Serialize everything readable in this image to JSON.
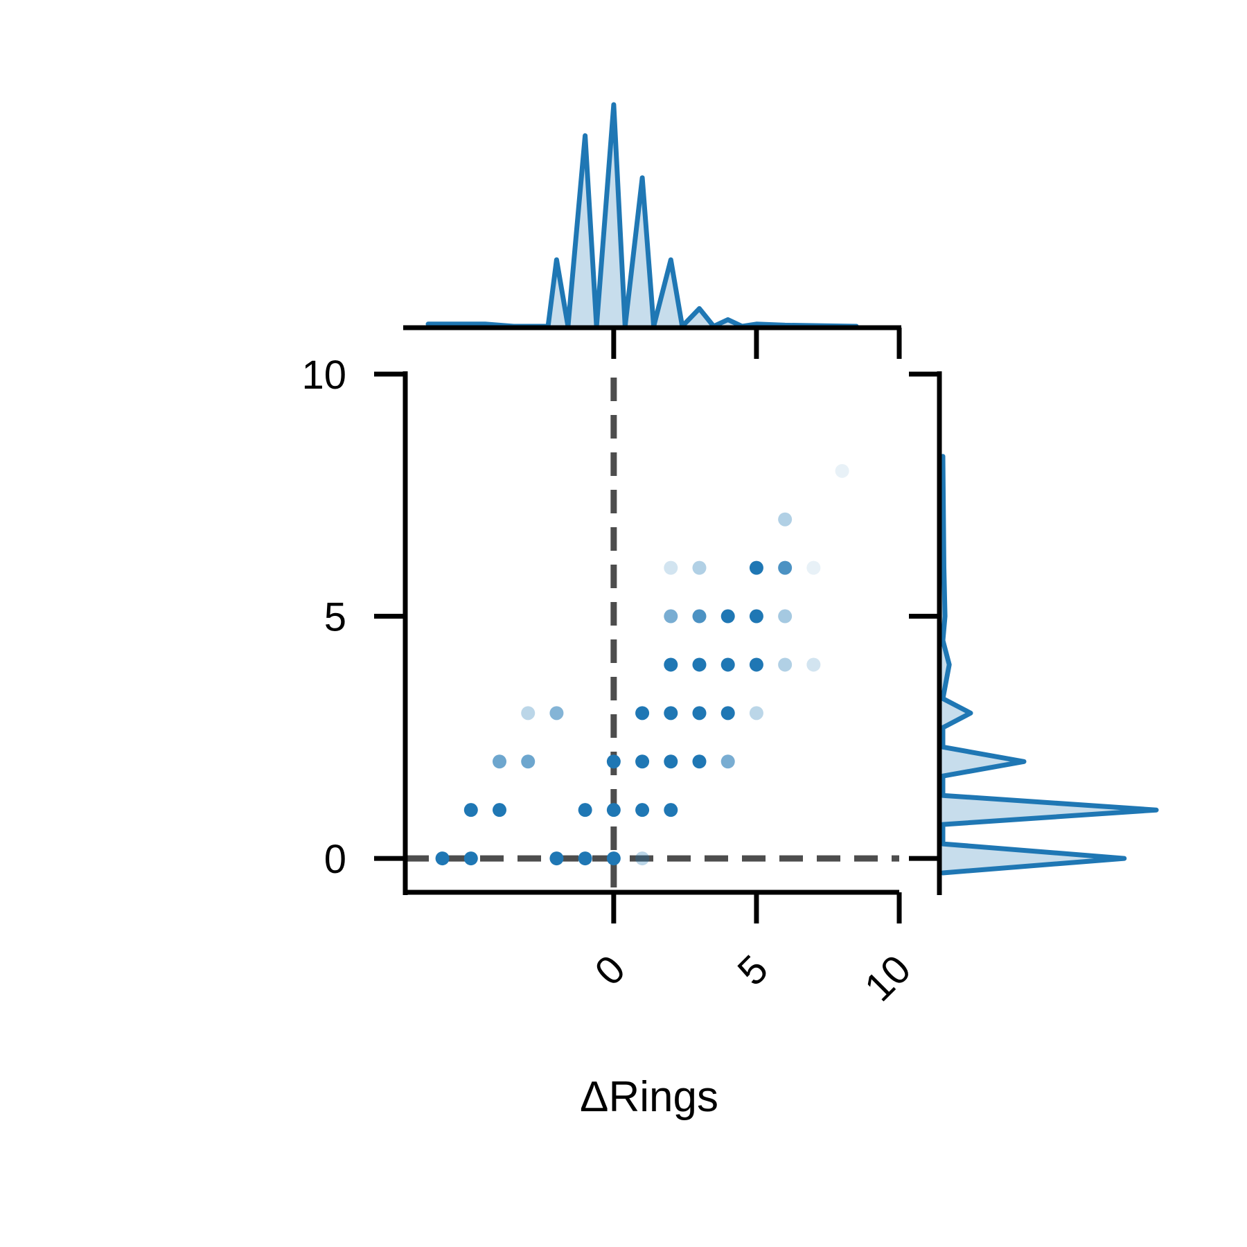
{
  "chart_data": {
    "type": "scatter",
    "title": "",
    "xlabel": "ΔRings",
    "ylabel": "",
    "xlim": [
      -7.3,
      10
    ],
    "ylim": [
      -0.7,
      10
    ],
    "x_ticks": [
      {
        "value": 0,
        "label": "0"
      },
      {
        "value": 5,
        "label": "5"
      },
      {
        "value": 10,
        "label": "10"
      }
    ],
    "y_ticks": [
      {
        "value": 0,
        "label": "0"
      },
      {
        "value": 5,
        "label": "5"
      },
      {
        "value": 10,
        "label": "10"
      }
    ],
    "reference_lines": {
      "x": 0,
      "y": 0,
      "style": "dashed",
      "color": "#4d4d4d"
    },
    "marker_color": "#1f77b4",
    "points": [
      {
        "x": -6,
        "y": 0,
        "opacity": 1.0
      },
      {
        "x": -5,
        "y": 0,
        "opacity": 1.0
      },
      {
        "x": -2,
        "y": 0,
        "opacity": 1.0
      },
      {
        "x": -1,
        "y": 0,
        "opacity": 1.0
      },
      {
        "x": 0,
        "y": 0,
        "opacity": 1.0
      },
      {
        "x": 1,
        "y": 0,
        "opacity": 0.3
      },
      {
        "x": -5,
        "y": 1,
        "opacity": 1.0
      },
      {
        "x": -4,
        "y": 1,
        "opacity": 1.0
      },
      {
        "x": -1,
        "y": 1,
        "opacity": 1.0
      },
      {
        "x": 0,
        "y": 1,
        "opacity": 1.0
      },
      {
        "x": 1,
        "y": 1,
        "opacity": 1.0
      },
      {
        "x": 2,
        "y": 1,
        "opacity": 1.0
      },
      {
        "x": -4,
        "y": 2,
        "opacity": 0.65
      },
      {
        "x": -3,
        "y": 2,
        "opacity": 0.65
      },
      {
        "x": 0,
        "y": 2,
        "opacity": 1.0
      },
      {
        "x": 1,
        "y": 2,
        "opacity": 1.0
      },
      {
        "x": 2,
        "y": 2,
        "opacity": 1.0
      },
      {
        "x": 3,
        "y": 2,
        "opacity": 1.0
      },
      {
        "x": 4,
        "y": 2,
        "opacity": 0.6
      },
      {
        "x": -3,
        "y": 3,
        "opacity": 0.3
      },
      {
        "x": -2,
        "y": 3,
        "opacity": 0.55
      },
      {
        "x": 1,
        "y": 3,
        "opacity": 1.0
      },
      {
        "x": 2,
        "y": 3,
        "opacity": 1.0
      },
      {
        "x": 3,
        "y": 3,
        "opacity": 1.0
      },
      {
        "x": 4,
        "y": 3,
        "opacity": 1.0
      },
      {
        "x": 5,
        "y": 3,
        "opacity": 0.3
      },
      {
        "x": 2,
        "y": 4,
        "opacity": 1.0
      },
      {
        "x": 3,
        "y": 4,
        "opacity": 1.0
      },
      {
        "x": 4,
        "y": 4,
        "opacity": 1.0
      },
      {
        "x": 5,
        "y": 4,
        "opacity": 1.0
      },
      {
        "x": 6,
        "y": 4,
        "opacity": 0.35
      },
      {
        "x": 7,
        "y": 4,
        "opacity": 0.2
      },
      {
        "x": 2,
        "y": 5,
        "opacity": 0.6
      },
      {
        "x": 3,
        "y": 5,
        "opacity": 0.8
      },
      {
        "x": 4,
        "y": 5,
        "opacity": 1.0
      },
      {
        "x": 5,
        "y": 5,
        "opacity": 1.0
      },
      {
        "x": 6,
        "y": 5,
        "opacity": 0.4
      },
      {
        "x": 2,
        "y": 6,
        "opacity": 0.2
      },
      {
        "x": 3,
        "y": 6,
        "opacity": 0.35
      },
      {
        "x": 5,
        "y": 6,
        "opacity": 1.0
      },
      {
        "x": 6,
        "y": 6,
        "opacity": 0.8
      },
      {
        "x": 7,
        "y": 6,
        "opacity": 0.1
      },
      {
        "x": 6,
        "y": 7,
        "opacity": 0.35
      },
      {
        "x": 8,
        "y": 8,
        "opacity": 0.1
      }
    ],
    "x_marginal_density": [
      {
        "x": -6.5,
        "d": 0.01
      },
      {
        "x": -5.5,
        "d": 0.01
      },
      {
        "x": -4.5,
        "d": 0.01
      },
      {
        "x": -3.5,
        "d": 0.0
      },
      {
        "x": -2.3,
        "d": 0.0
      },
      {
        "x": -2,
        "d": 0.3
      },
      {
        "x": -1.6,
        "d": 0.0
      },
      {
        "x": -1,
        "d": 0.86
      },
      {
        "x": -0.6,
        "d": 0.0
      },
      {
        "x": 0,
        "d": 1.0
      },
      {
        "x": 0.4,
        "d": 0.0
      },
      {
        "x": 1,
        "d": 0.67
      },
      {
        "x": 1.4,
        "d": 0.0
      },
      {
        "x": 2,
        "d": 0.3
      },
      {
        "x": 2.4,
        "d": 0.0
      },
      {
        "x": 3,
        "d": 0.08
      },
      {
        "x": 3.5,
        "d": 0.0
      },
      {
        "x": 4,
        "d": 0.03
      },
      {
        "x": 4.5,
        "d": 0.0
      },
      {
        "x": 5,
        "d": 0.01
      },
      {
        "x": 6,
        "d": 0.005
      },
      {
        "x": 8.5,
        "d": 0.0
      }
    ],
    "y_marginal_density": [
      {
        "y": -0.3,
        "d": 0.0
      },
      {
        "y": 0,
        "d": 0.85
      },
      {
        "y": 0.3,
        "d": 0.0
      },
      {
        "y": 0.7,
        "d": 0.0
      },
      {
        "y": 1,
        "d": 1.0
      },
      {
        "y": 1.3,
        "d": 0.0
      },
      {
        "y": 1.7,
        "d": 0.0
      },
      {
        "y": 2,
        "d": 0.38
      },
      {
        "y": 2.3,
        "d": 0.0
      },
      {
        "y": 2.7,
        "d": 0.0
      },
      {
        "y": 3,
        "d": 0.13
      },
      {
        "y": 3.3,
        "d": 0.0
      },
      {
        "y": 4,
        "d": 0.03
      },
      {
        "y": 4.5,
        "d": 0.0
      },
      {
        "y": 5,
        "d": 0.01
      },
      {
        "y": 6,
        "d": 0.005
      },
      {
        "y": 8.3,
        "d": 0.0
      }
    ]
  }
}
